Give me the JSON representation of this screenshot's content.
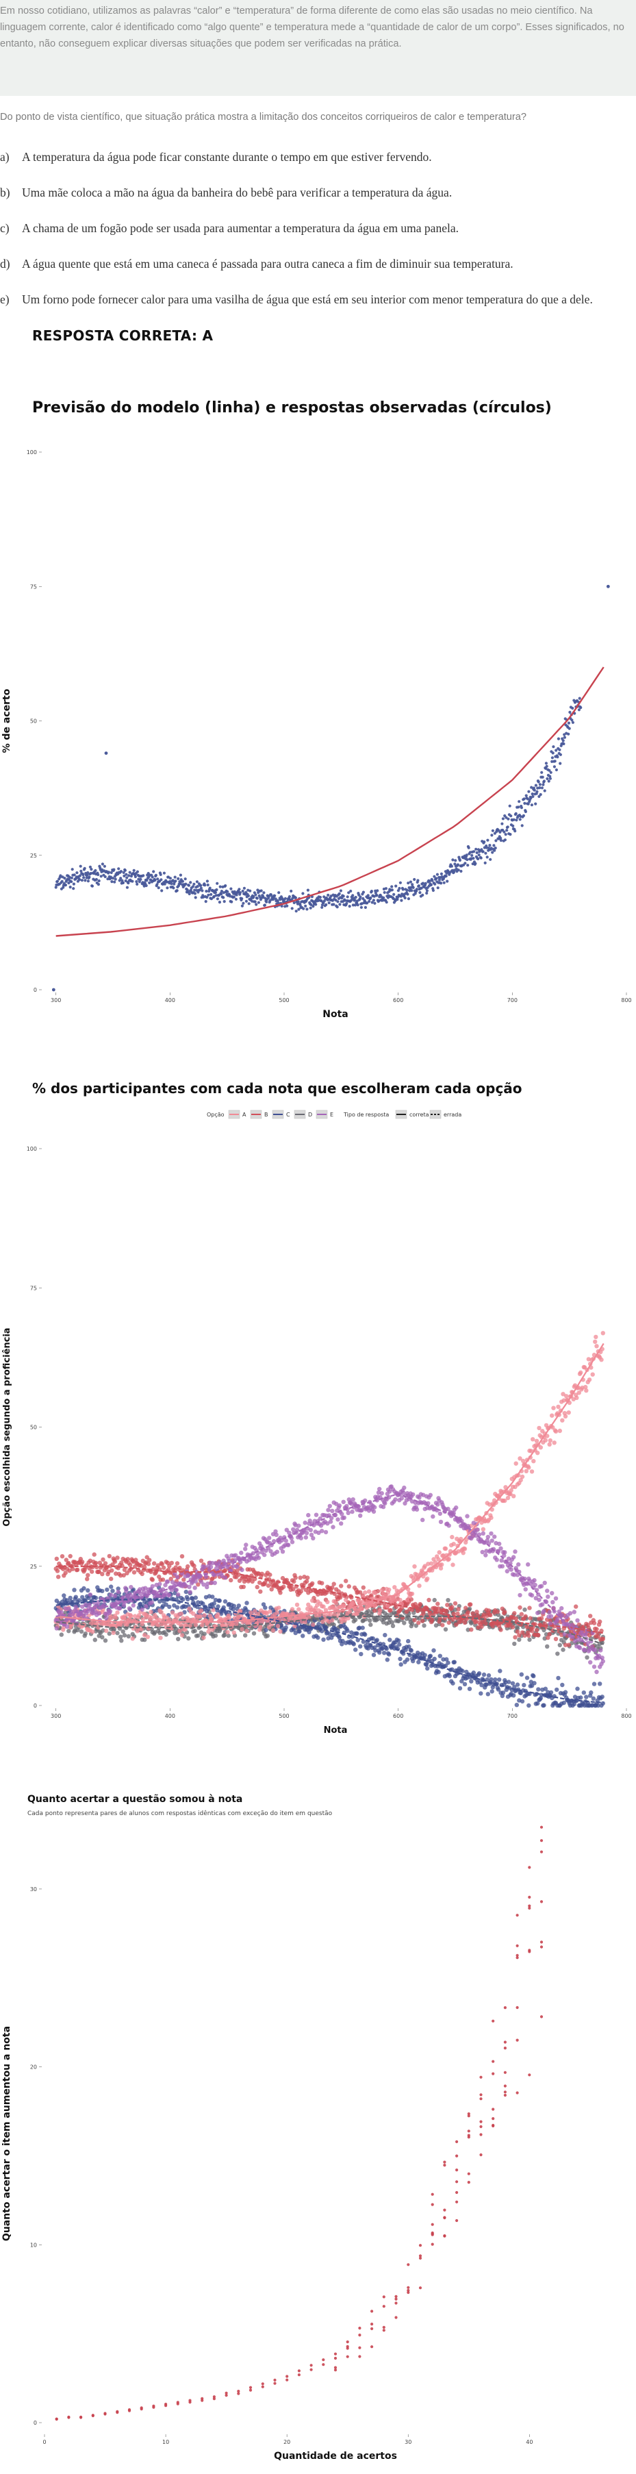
{
  "intro": {
    "text": "Em nosso cotidiano, utilizamos as palavras “calor” e “temperatura” de forma diferente de como elas são usadas no meio científico. Na linguagem corrente, calor é identificado como “algo quente” e temperatura mede a “quantidade de calor de um corpo”. Esses significados, no entanto, não conseguem explicar diversas situações que podem ser verificadas na prática."
  },
  "question": {
    "text": "Do ponto de vista científico, que situação prática mostra a limitação dos conceitos corriqueiros de calor e temperatura?"
  },
  "options": [
    {
      "letter": "a)",
      "text": "A temperatura da água pode ficar constante durante o tempo em que estiver fervendo."
    },
    {
      "letter": "b)",
      "text": "Uma mãe coloca a mão na água da banheira do bebê para verificar a temperatura da água."
    },
    {
      "letter": "c)",
      "text": "A chama de um fogão pode ser usada para aumentar a temperatura da água em uma panela."
    },
    {
      "letter": "d)",
      "text": "A água quente que está em uma caneca é passada para outra caneca a fim de diminuir sua temperatura."
    },
    {
      "letter": "e)",
      "text": "Um forno pode fornecer calor para uma vasilha de água que está em seu interior com menor temperatura do que a dele."
    }
  ],
  "answer": "RESPOSTA CORRETA: A",
  "chart_data": [
    {
      "type": "scatter",
      "title": "Previsão do modelo (linha) e respostas observadas (círculos)",
      "xlabel": "Nota",
      "ylabel": "% de acerto",
      "xlim": [
        290,
        800
      ],
      "ylim": [
        0,
        100
      ],
      "xticks": [
        300,
        400,
        500,
        600,
        700,
        800
      ],
      "yticks": [
        0,
        25,
        50,
        75,
        100
      ],
      "grid": false,
      "point_color": "#4a5a9a",
      "line_color": "#c8434f",
      "observed_trend": {
        "x": [
          300,
          320,
          340,
          360,
          380,
          400,
          420,
          440,
          460,
          480,
          500,
          520,
          540,
          560,
          580,
          600,
          620,
          640,
          660,
          680,
          700,
          710,
          720,
          730,
          740,
          750,
          760
        ],
        "y": [
          19.5,
          21.0,
          21.5,
          21.0,
          20.5,
          20.0,
          19.0,
          18.0,
          17.5,
          17.0,
          16.5,
          16.5,
          16.5,
          16.5,
          17.0,
          18.0,
          19.0,
          21.0,
          24.0,
          27.0,
          31.0,
          34.0,
          37.0,
          40.0,
          44.0,
          50.0,
          55.0
        ]
      },
      "outliers": [
        {
          "x": 298,
          "y": 0
        },
        {
          "x": 344,
          "y": 44
        },
        {
          "x": 784,
          "y": 75
        }
      ],
      "model": {
        "x": [
          300,
          350,
          400,
          450,
          500,
          550,
          600,
          650,
          700,
          750,
          780
        ],
        "y": [
          10.0,
          10.8,
          12.0,
          13.7,
          16.0,
          19.3,
          24.0,
          30.5,
          39.0,
          50.5,
          60.0
        ]
      }
    },
    {
      "type": "scatter",
      "title": "% dos participantes com cada nota que escolheram cada opção",
      "xlabel": "Nota",
      "ylabel": "Opção escolhida segundo a proficiência",
      "xlim": [
        290,
        800
      ],
      "ylim": [
        0,
        100
      ],
      "xticks": [
        300,
        400,
        500,
        600,
        700,
        800
      ],
      "yticks": [
        0,
        25,
        50,
        75,
        100
      ],
      "grid": false,
      "legend": {
        "placement": "top",
        "option_title": "Opção",
        "type_title": "Tipo de resposta",
        "type_items": [
          "correta",
          "errada"
        ]
      },
      "series": [
        {
          "name": "A",
          "color": "#f08a96",
          "x": [
            300,
            350,
            400,
            450,
            500,
            550,
            600,
            650,
            700,
            750,
            780
          ],
          "y": [
            16,
            15,
            15,
            15,
            16,
            17,
            20,
            28,
            40,
            55,
            65
          ]
        },
        {
          "name": "B",
          "color": "#d0505a",
          "x": [
            300,
            350,
            400,
            450,
            500,
            550,
            600,
            650,
            700,
            750,
            780
          ],
          "y": [
            25,
            25,
            24,
            24,
            22,
            20,
            18,
            16,
            15,
            14,
            13
          ]
        },
        {
          "name": "C",
          "color": "#3f4f92",
          "x": [
            300,
            350,
            400,
            450,
            500,
            550,
            600,
            650,
            700,
            750,
            780
          ],
          "y": [
            18,
            19,
            19,
            17,
            15,
            13,
            10,
            6,
            3,
            1,
            0.5
          ]
        },
        {
          "name": "D",
          "color": "#6a6a72",
          "x": [
            300,
            350,
            400,
            450,
            500,
            550,
            600,
            650,
            700,
            750,
            780
          ],
          "y": [
            15,
            14,
            14,
            14,
            15,
            16,
            16,
            16,
            15,
            13,
            11
          ]
        },
        {
          "name": "E",
          "color": "#a566b8",
          "x": [
            300,
            350,
            400,
            450,
            500,
            550,
            600,
            650,
            700,
            750,
            780
          ],
          "y": [
            16,
            18,
            21,
            25,
            30,
            35,
            38,
            34,
            25,
            14,
            8
          ]
        }
      ]
    },
    {
      "type": "scatter",
      "title": "Quanto acertar a questão somou à nota",
      "subtitle": "Cada ponto representa pares de alunos com respostas idênticas com exceção do item em questão",
      "xlabel": "Quantidade de acertos",
      "ylabel": "Quanto acertar o item aumentou a nota",
      "xlim": [
        0,
        48
      ],
      "ylim": [
        -0.5,
        33
      ],
      "xticks": [
        0,
        10,
        20,
        30,
        40
      ],
      "yticks": [
        0,
        10,
        20,
        30
      ],
      "grid": false,
      "point_color": "#c8434f",
      "points": [
        {
          "x": 1,
          "y": 0.2
        },
        {
          "x": 2,
          "y": 0.3
        },
        {
          "x": 3,
          "y": 0.3
        },
        {
          "x": 4,
          "y": 0.4
        },
        {
          "x": 5,
          "y": 0.5
        },
        {
          "x": 6,
          "y": 0.6
        },
        {
          "x": 7,
          "y": 0.7
        },
        {
          "x": 8,
          "y": 0.8
        },
        {
          "x": 9,
          "y": 0.9
        },
        {
          "x": 10,
          "y": 1.0
        },
        {
          "x": 11,
          "y": 1.1
        },
        {
          "x": 12,
          "y": 1.2
        },
        {
          "x": 13,
          "y": 1.3
        },
        {
          "x": 14,
          "y": 1.4
        },
        {
          "x": 15,
          "y": 1.6
        },
        {
          "x": 16,
          "y": 1.7
        },
        {
          "x": 17,
          "y": 1.9
        },
        {
          "x": 18,
          "y": 2.1
        },
        {
          "x": 19,
          "y": 2.3
        },
        {
          "x": 20,
          "y": 2.5
        },
        {
          "x": 21,
          "y": 2.8
        },
        {
          "x": 22,
          "y": 3.1
        },
        {
          "x": 23,
          "y": 3.4
        },
        {
          "x": 24,
          "y": 3.8
        },
        {
          "x": 25,
          "y": 4.2
        },
        {
          "x": 26,
          "y": 4.7
        },
        {
          "x": 27,
          "y": 5.3
        },
        {
          "x": 28,
          "y": 6.0
        },
        {
          "x": 29,
          "y": 6.8
        },
        {
          "x": 30,
          "y": 7.8
        },
        {
          "x": 31,
          "y": 9.0
        },
        {
          "x": 32,
          "y": 10.5
        },
        {
          "x": 33,
          "y": 12.0
        },
        {
          "x": 34,
          "y": 13.5
        },
        {
          "x": 35,
          "y": 15.0
        },
        {
          "x": 36,
          "y": 17.0
        },
        {
          "x": 37,
          "y": 19.0
        },
        {
          "x": 38,
          "y": 21.0
        },
        {
          "x": 39,
          "y": 24.0
        },
        {
          "x": 40,
          "y": 27.0
        },
        {
          "x": 41,
          "y": 29.5
        }
      ]
    }
  ]
}
